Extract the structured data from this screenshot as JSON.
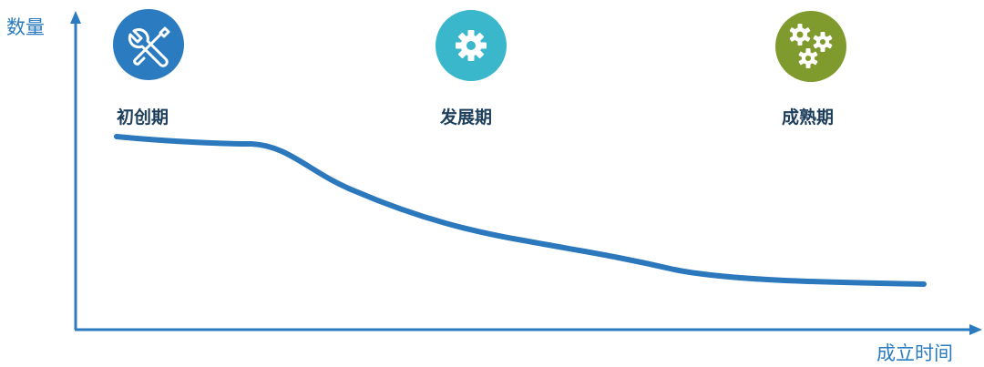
{
  "axes": {
    "y_label": "数量",
    "x_label": "成立时间"
  },
  "stages": [
    {
      "label": "初创期",
      "icon": "tools-icon",
      "color": "#2a7bbf"
    },
    {
      "label": "发展期",
      "icon": "gear-icon",
      "color": "#3bb7cb"
    },
    {
      "label": "成熟期",
      "icon": "gears-icon",
      "color": "#7f9a2d"
    }
  ],
  "colors": {
    "axis": "#2a7bbf",
    "curve": "#2b78bd",
    "label_text": "#1e3f5c"
  }
}
